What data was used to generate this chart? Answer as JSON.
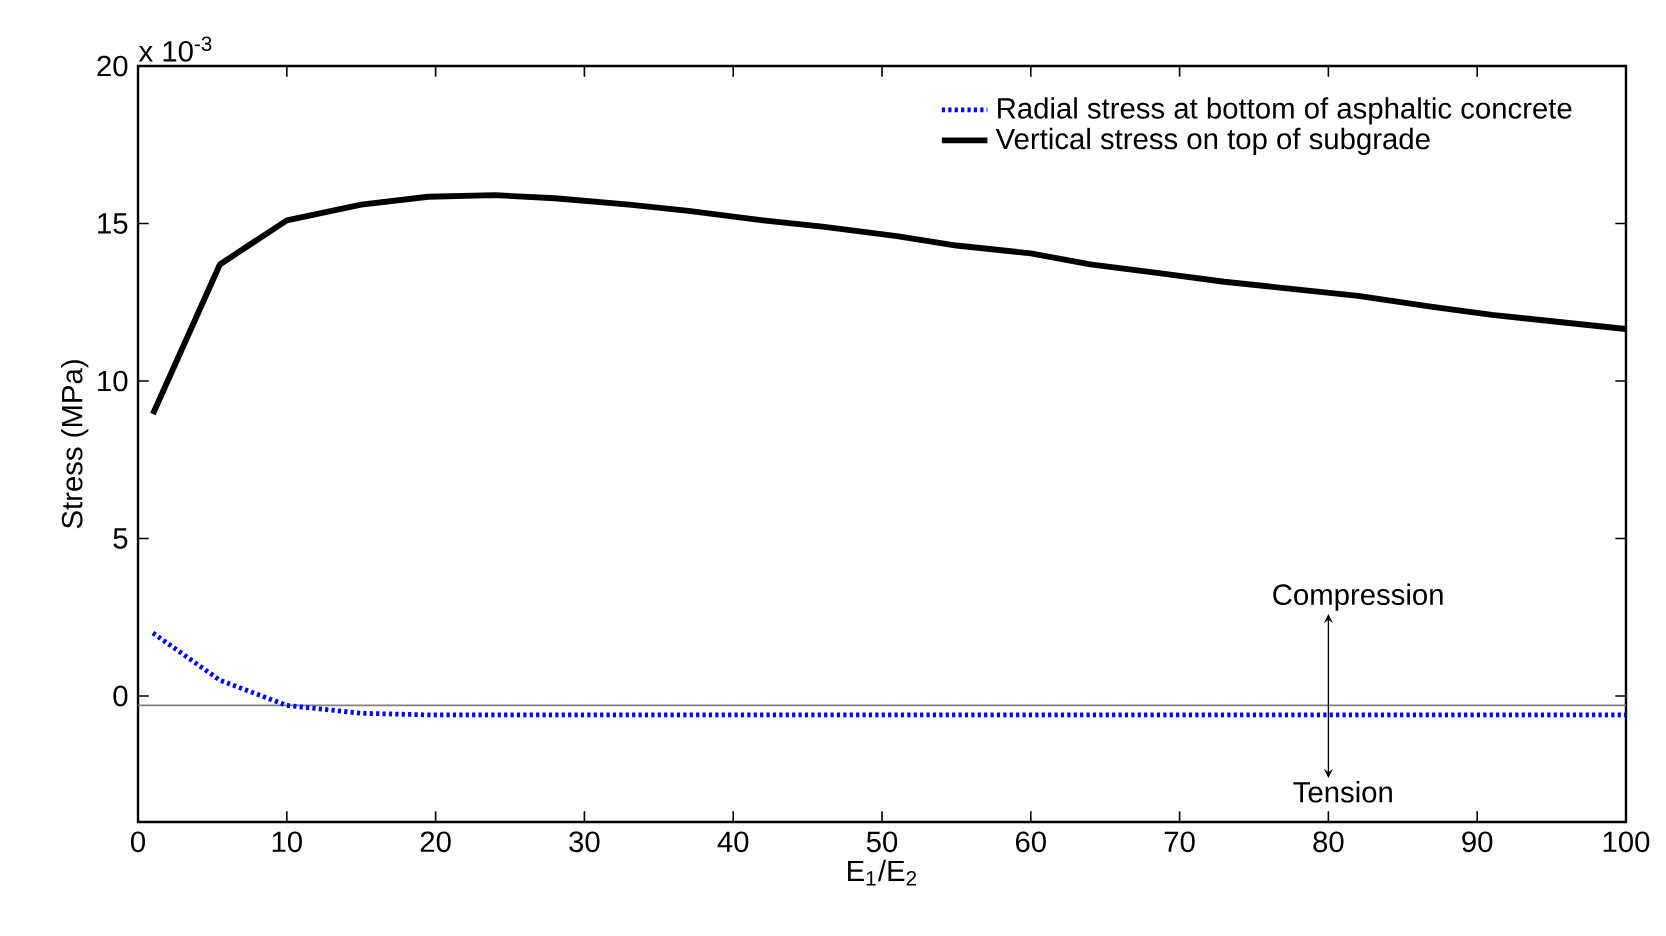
{
  "chart_data": {
    "type": "line",
    "xlabel": "E$_{1}$/E$_{2}$",
    "ylabel": "Stress (MPa)",
    "annotations": [
      "x 10$^{-3}$",
      "Compression",
      "Tension"
    ],
    "xlim": [
      0,
      100
    ],
    "ylim": [
      -4,
      20
    ],
    "xticks": [
      0,
      10,
      20,
      30,
      40,
      50,
      60,
      70,
      80,
      90,
      100
    ],
    "yticks": [
      0,
      5,
      10,
      15,
      20
    ],
    "legend": "top right",
    "grid": false,
    "marker": "none",
    "ref_lines": [
      {
        "axis": "y",
        "value": -0.3,
        "color": "#808080"
      }
    ],
    "series": [
      {
        "name": "Radial stress at bottom of asphaltic concrete",
        "color": "#0000ff",
        "line_style": "dotted",
        "x": [
          1,
          5.5,
          10,
          15,
          19.5,
          24,
          28,
          33,
          37,
          42,
          46,
          51,
          55,
          60,
          64,
          69,
          73,
          78,
          82,
          87,
          91,
          96,
          100
        ],
        "values": [
          2.0,
          0.5,
          -0.3,
          -0.55,
          -0.6,
          -0.6,
          -0.6,
          -0.6,
          -0.6,
          -0.6,
          -0.6,
          -0.6,
          -0.6,
          -0.6,
          -0.6,
          -0.6,
          -0.6,
          -0.6,
          -0.6,
          -0.6,
          -0.6,
          -0.6,
          -0.6
        ]
      },
      {
        "name": "Vertical stress on top of subgrade",
        "color": "#000000",
        "line_style": "solid",
        "x": [
          1,
          5.5,
          10,
          15,
          19.5,
          24,
          28,
          33,
          37,
          42,
          46,
          51,
          55,
          60,
          64,
          69,
          73,
          78,
          82,
          87,
          91,
          96,
          100
        ],
        "values": [
          8.95,
          13.7,
          15.1,
          15.6,
          15.85,
          15.9,
          15.8,
          15.6,
          15.4,
          15.1,
          14.9,
          14.6,
          14.3,
          14.05,
          13.7,
          13.4,
          13.15,
          12.9,
          12.7,
          12.35,
          12.1,
          11.85,
          11.65
        ]
      }
    ]
  }
}
